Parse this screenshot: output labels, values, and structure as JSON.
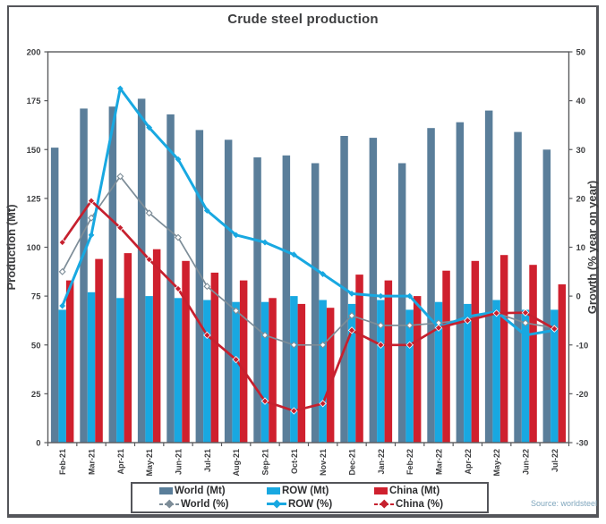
{
  "title": "Crude steel production",
  "source": "Source: worldsteel",
  "chart_data": {
    "type": "bar",
    "subtype": "combo-bar-line-dual-axis",
    "title": "Crude steel production",
    "categories": [
      "Feb-21",
      "Mar-21",
      "Apr-21",
      "May-21",
      "Jun-21",
      "Jul-21",
      "Aug-21",
      "Sep-21",
      "Oct-21",
      "Nov-21",
      "Dec-21",
      "Jan-22",
      "Feb-22",
      "Mar-22",
      "Apr-22",
      "May-22",
      "Jun-22",
      "Jul-22"
    ],
    "bar_series": [
      {
        "name": "World (Mt)",
        "axis": "left",
        "color": "#5a7e9a",
        "values": [
          151,
          171,
          172,
          176,
          168,
          160,
          155,
          146,
          147,
          143,
          157,
          156,
          143,
          161,
          164,
          170,
          159,
          150
        ]
      },
      {
        "name": "ROW (Mt)",
        "axis": "left",
        "color": "#18a8e1",
        "values": [
          68,
          77,
          74,
          75,
          74,
          73,
          72,
          72,
          75,
          73,
          71,
          73,
          68,
          72,
          71,
          73,
          68,
          68
        ]
      },
      {
        "name": "China (Mt)",
        "axis": "left",
        "color": "#cf202e",
        "values": [
          83,
          94,
          97,
          99,
          93,
          87,
          83,
          74,
          71,
          69,
          86,
          83,
          75,
          88,
          93,
          96,
          91,
          81
        ]
      }
    ],
    "line_series": [
      {
        "name": "World (%)",
        "axis": "right",
        "color": "#7d8d98",
        "marker": "open-diamond",
        "width": 1.7,
        "values": [
          5,
          16,
          24.5,
          17,
          12,
          2,
          -3,
          -8,
          -10,
          -10,
          -4,
          -6,
          -6,
          -5.5,
          -4.8,
          -3.5,
          -5.5,
          -6.5
        ]
      },
      {
        "name": "ROW (%)",
        "axis": "right",
        "color": "#18a8e1",
        "marker": "diamond",
        "width": 3,
        "values": [
          -2,
          12.5,
          42.5,
          34.5,
          28,
          17.5,
          12.5,
          11,
          8.5,
          4.5,
          0.5,
          0,
          0,
          -6.4,
          -4.2,
          -3.2,
          -8,
          -7
        ]
      },
      {
        "name": "China (%)",
        "axis": "right",
        "color": "#c6202e",
        "marker": "diamond",
        "width": 2.7,
        "values": [
          11,
          19.5,
          14,
          7.5,
          1.5,
          -8,
          -13,
          -21.5,
          -23.5,
          -22,
          -7,
          -10,
          -10,
          -6.5,
          -5,
          -3.5,
          -3.4,
          -6.7
        ]
      }
    ],
    "ylabel_left": "Production (Mt)",
    "ylabel_right": "Growth (% year on year)",
    "ylim_left": [
      0,
      200
    ],
    "ylim_right": [
      -30,
      50
    ],
    "left_ticks": [
      0,
      25,
      50,
      75,
      100,
      125,
      150,
      175,
      200
    ],
    "right_ticks": [
      -30,
      -20,
      -10,
      0,
      10,
      20,
      30,
      40,
      50
    ],
    "grid": false,
    "legend_position": "bottom"
  }
}
